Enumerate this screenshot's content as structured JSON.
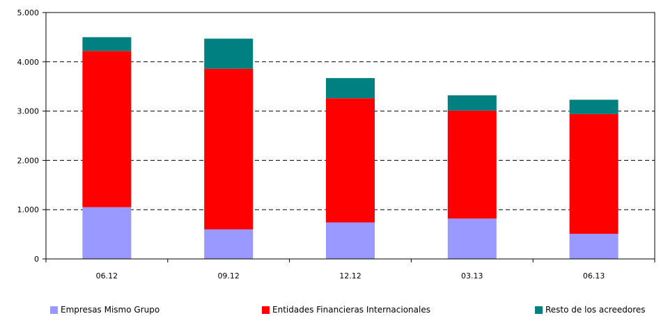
{
  "chart_data": {
    "type": "bar",
    "stacked": true,
    "title": "",
    "xlabel": "",
    "ylabel": "",
    "categories": [
      "06.12",
      "09.12",
      "12.12",
      "03.13",
      "06.13"
    ],
    "series": [
      {
        "name": "Empresas Mismo Grupo",
        "color": "#9999ff",
        "values": [
          1050,
          600,
          740,
          820,
          510
        ]
      },
      {
        "name": "Entidades Financieras Internacionales",
        "color": "#ff0000",
        "values": [
          3170,
          3260,
          2520,
          2190,
          2430
        ]
      },
      {
        "name": "Resto de los acreedores",
        "color": "#008080",
        "values": [
          280,
          610,
          410,
          310,
          290
        ]
      }
    ],
    "ylim": [
      0,
      5000
    ],
    "yticks": [
      "0",
      "1.000",
      "2.000",
      "3.000",
      "4.000",
      "5.000"
    ],
    "grid": "dashed horizontal",
    "legend_position": "bottom"
  }
}
